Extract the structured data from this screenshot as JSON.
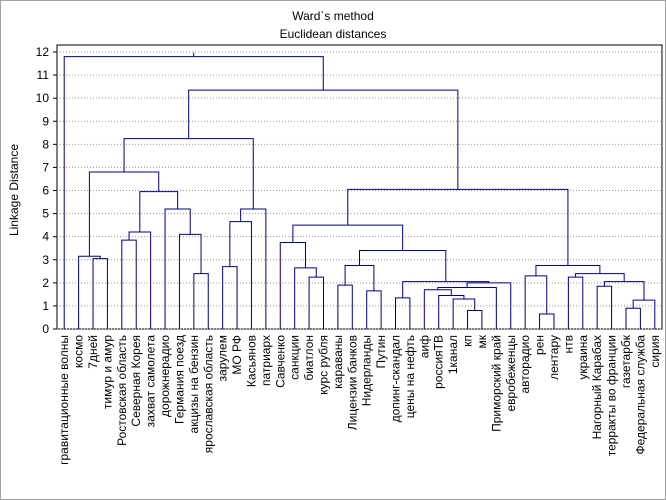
{
  "chart_data": {
    "type": "dendrogram",
    "title": "Ward`s method",
    "subtitle": "Euclidean distances",
    "ylabel": "Linkage Distance",
    "ylim": [
      0,
      12
    ],
    "yticks": [
      0,
      1,
      2,
      3,
      4,
      5,
      6,
      7,
      8,
      9,
      10,
      11,
      12
    ],
    "grid": true,
    "color": "#000080",
    "tree": {
      "height": 11.8,
      "children": [
        "гравитационные волны",
        {
          "height": 10.35,
          "children": [
            {
              "height": 8.25,
              "children": [
                {
                  "height": 6.8,
                  "children": [
                    {
                      "height": 3.15,
                      "children": [
                        "космо",
                        {
                          "height": 3.05,
                          "children": [
                            "7дней",
                            "тимур и амур"
                          ]
                        }
                      ]
                    },
                    {
                      "height": 5.95,
                      "children": [
                        {
                          "height": 4.2,
                          "children": [
                            {
                              "height": 3.85,
                              "children": [
                                "Ростовская область",
                                "Северная Корея"
                              ]
                            },
                            "захват самолета"
                          ]
                        },
                        {
                          "height": 5.2,
                          "children": [
                            "дорожнерадио",
                            {
                              "height": 4.1,
                              "children": [
                                "Германия поезд",
                                {
                                  "height": 2.4,
                                  "children": [
                                    "акцизы на бензин",
                                    "ярославская область"
                                  ]
                                }
                              ]
                            }
                          ]
                        }
                      ]
                    }
                  ]
                },
                {
                  "height": 5.2,
                  "children": [
                    {
                      "height": 4.65,
                      "children": [
                        {
                          "height": 2.7,
                          "children": [
                            "зарулем",
                            "МО РФ"
                          ]
                        },
                        "Касьянов"
                      ]
                    },
                    "патриарх"
                  ]
                }
              ]
            },
            {
              "height": 6.05,
              "children": [
                {
                  "height": 4.5,
                  "children": [
                    {
                      "height": 3.75,
                      "children": [
                        "Савченко",
                        {
                          "height": 2.65,
                          "children": [
                            "санкции",
                            {
                              "height": 2.25,
                              "children": [
                                "биатлон",
                                "курс рубля"
                              ]
                            }
                          ]
                        }
                      ]
                    },
                    {
                      "height": 3.4,
                      "children": [
                        {
                          "height": 2.75,
                          "children": [
                            {
                              "height": 1.9,
                              "children": [
                                "караваны",
                                "Лицензии банков"
                              ]
                            },
                            {
                              "height": 1.65,
                              "children": [
                                "Нидерланды",
                                "Путин"
                              ]
                            }
                          ]
                        },
                        {
                          "height": 2.05,
                          "children": [
                            {
                              "height": 1.35,
                              "children": [
                                "допинг-скандал",
                                "цены на нефть"
                              ]
                            },
                            {
                              "height": 2.0,
                              "children": [
                                {
                                  "height": 1.8,
                                  "children": [
                                    {
                                      "height": 1.7,
                                      "children": [
                                        "аиф",
                                        {
                                          "height": 1.45,
                                          "children": [
                                            "россияТВ",
                                            {
                                              "height": 1.3,
                                              "children": [
                                                "1канал",
                                                {
                                                  "height": 0.8,
                                                  "children": [
                                                    "кп",
                                                    "мк"
                                                  ]
                                                }
                                              ]
                                            }
                                          ]
                                        }
                                      ]
                                    },
                                    "Приморский край"
                                  ]
                                },
                                "евробеженцы"
                              ]
                            }
                          ]
                        }
                      ]
                    }
                  ]
                },
                {
                  "height": 2.75,
                  "children": [
                    {
                      "height": 2.3,
                      "children": [
                        "авторадио",
                        {
                          "height": 0.65,
                          "children": [
                            "рен",
                            "лентару"
                          ]
                        }
                      ]
                    },
                    {
                      "height": 2.4,
                      "children": [
                        {
                          "height": 2.25,
                          "children": [
                            "нтв",
                            "украина"
                          ]
                        },
                        {
                          "height": 2.05,
                          "children": [
                            {
                              "height": 1.85,
                              "children": [
                                "Нагорный Карабах",
                                "терракты во франции"
                              ]
                            },
                            {
                              "height": 1.25,
                              "children": [
                                {
                                  "height": 0.9,
                                  "children": [
                                    "газетарбк",
                                    "Федеральная служба"
                                  ]
                                },
                                "сирия"
                              ]
                            }
                          ]
                        }
                      ]
                    }
                  ]
                }
              ]
            }
          ]
        }
      ]
    }
  }
}
